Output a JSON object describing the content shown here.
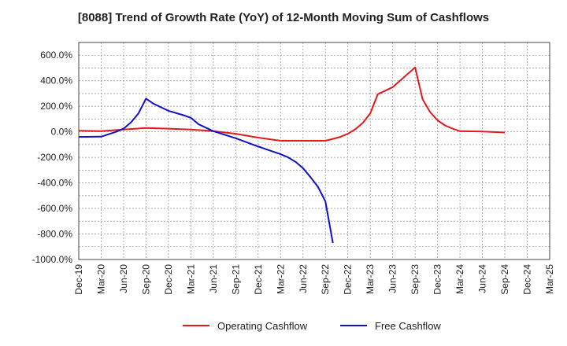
{
  "chart_data": {
    "type": "line",
    "title": "[8088]  Trend of Growth Rate (YoY) of 12-Month Moving Sum of Cashflows",
    "xlabel": "",
    "ylabel": "",
    "ylim": [
      -1000,
      700
    ],
    "y_ticks": [
      "600.0%",
      "400.0%",
      "200.0%",
      "0.0%",
      "-200.0%",
      "-400.0%",
      "-600.0%",
      "-800.0%",
      "-1000.0%"
    ],
    "y_tick_values": [
      600,
      400,
      200,
      0,
      -200,
      -400,
      -600,
      -800,
      -1000
    ],
    "x_ticks": [
      "Dec-19",
      "Mar-20",
      "Jun-20",
      "Sep-20",
      "Dec-20",
      "Mar-21",
      "Jun-21",
      "Sep-21",
      "Dec-21",
      "Mar-22",
      "Jun-22",
      "Sep-22",
      "Dec-22",
      "Mar-23",
      "Jun-23",
      "Sep-23",
      "Dec-23",
      "Mar-24",
      "Jun-24",
      "Sep-24",
      "Dec-24",
      "Mar-25"
    ],
    "grid": true,
    "legend_position": "bottom",
    "colors": {
      "operating": "#e31a1c",
      "free": "#1010cc"
    },
    "series": [
      {
        "name": "Operating Cashflow",
        "color": "#e31a1c",
        "points": [
          [
            "Dec-19",
            8
          ],
          [
            "Mar-20",
            5
          ],
          [
            "Jun-20",
            18
          ],
          [
            "Sep-20",
            30
          ],
          [
            "Dec-20",
            25
          ],
          [
            "Mar-21",
            18
          ],
          [
            "Jun-21",
            5
          ],
          [
            "Sep-21",
            -15
          ],
          [
            "Dec-21",
            -45
          ],
          [
            "Mar-22",
            -70
          ],
          [
            "Jun-22",
            -70
          ],
          [
            "Sep-22",
            -70
          ],
          [
            "Oct-22",
            -55
          ],
          [
            "Nov-22",
            -40
          ],
          [
            "Dec-22",
            -15
          ],
          [
            "Jan-23",
            20
          ],
          [
            "Feb-23",
            70
          ],
          [
            "Mar-23",
            145
          ],
          [
            "Apr-23",
            295
          ],
          [
            "Jun-23",
            350
          ],
          [
            "Sep-23",
            505
          ],
          [
            "Oct-23",
            255
          ],
          [
            "Nov-23",
            155
          ],
          [
            "Dec-23",
            90
          ],
          [
            "Jan-24",
            50
          ],
          [
            "Feb-24",
            25
          ],
          [
            "Mar-24",
            5
          ],
          [
            "Jun-24",
            2
          ],
          [
            "Sep-24",
            -5
          ]
        ]
      },
      {
        "name": "Free Cashflow",
        "color": "#1010cc",
        "points": [
          [
            "Dec-19",
            -40
          ],
          [
            "Mar-20",
            -38
          ],
          [
            "May-20",
            0
          ],
          [
            "Jun-20",
            25
          ],
          [
            "Jul-20",
            75
          ],
          [
            "Aug-20",
            145
          ],
          [
            "Sep-20",
            260
          ],
          [
            "Oct-20",
            220
          ],
          [
            "Dec-20",
            165
          ],
          [
            "Feb-21",
            130
          ],
          [
            "Mar-21",
            110
          ],
          [
            "Apr-21",
            60
          ],
          [
            "Jun-21",
            5
          ],
          [
            "Sep-21",
            -50
          ],
          [
            "Dec-21",
            -115
          ],
          [
            "Mar-22",
            -175
          ],
          [
            "Apr-22",
            -200
          ],
          [
            "May-22",
            -235
          ],
          [
            "Jun-22",
            -285
          ],
          [
            "Jul-22",
            -355
          ],
          [
            "Aug-22",
            -430
          ],
          [
            "Sep-22",
            -545
          ],
          [
            "Oct-22",
            -870
          ]
        ]
      }
    ]
  }
}
